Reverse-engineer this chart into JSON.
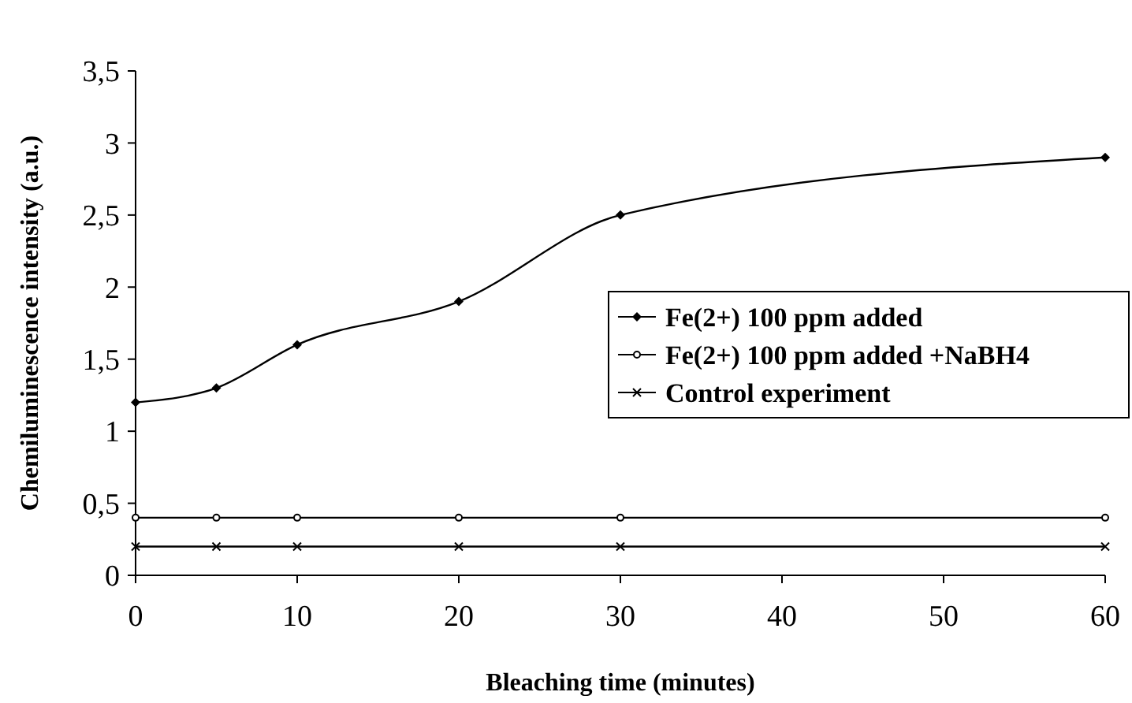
{
  "chart_data": {
    "type": "line",
    "xlabel": "Bleaching time (minutes)",
    "ylabel": "Chemiluminescence intensity (a.u.)",
    "xlim": [
      0,
      60
    ],
    "xticks": [
      0,
      10,
      20,
      30,
      40,
      50,
      60
    ],
    "ylim": [
      0,
      3.5
    ],
    "yticks": [
      0,
      {
        "value": 0.5,
        "label": "0,5"
      },
      1,
      {
        "value": 1.5,
        "label": "1,5"
      },
      2,
      {
        "value": 2.5,
        "label": "2,5"
      },
      3,
      {
        "value": 3.5,
        "label": "3,5"
      }
    ],
    "x": [
      0,
      5,
      10,
      20,
      30,
      60
    ],
    "grid": false,
    "legend": "right",
    "line_style": "solid",
    "series": [
      {
        "name": "Fe(2+) 100 ppm added",
        "color": "#000000",
        "marker": "diamond",
        "values": [
          1.2,
          1.3,
          1.6,
          1.9,
          2.5,
          2.9
        ]
      },
      {
        "name": "Fe(2+) 100 ppm added +NaBH4",
        "color": "#000000",
        "marker": "circle",
        "values": [
          0.4,
          0.4,
          0.4,
          0.4,
          0.4,
          0.4
        ]
      },
      {
        "name": "Control experiment",
        "color": "#000000",
        "marker": "cross",
        "values": [
          0.2,
          0.2,
          0.2,
          0.2,
          0.2,
          0.2
        ]
      }
    ]
  }
}
